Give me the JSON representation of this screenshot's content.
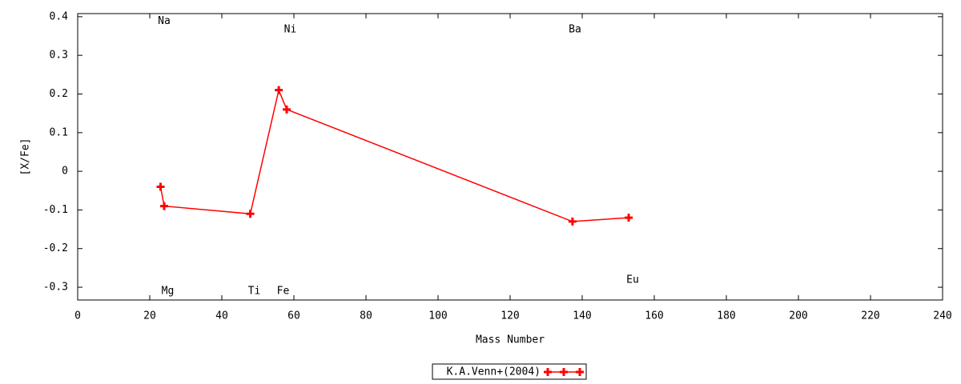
{
  "chart_data": {
    "type": "line",
    "xlabel": "Mass Number",
    "ylabel": "[X/Fe]",
    "xlim": [
      0,
      240
    ],
    "xticks": [
      0,
      20,
      40,
      60,
      80,
      100,
      120,
      140,
      160,
      180,
      200,
      220,
      240
    ],
    "ylim": [
      -0.333,
      0.408
    ],
    "yticks": [
      -0.3,
      -0.2,
      -0.1,
      0,
      0.1,
      0.2,
      0.3,
      0.4
    ],
    "grid": false,
    "legend": "bottom",
    "series": [
      {
        "name": "K.A.Venn+(2004)",
        "color": "#ff0000",
        "x": [
          23,
          24,
          47.9,
          55.8,
          58,
          137.3,
          152.9
        ],
        "values": [
          -0.04,
          -0.09,
          -0.11,
          0.21,
          0.16,
          -0.13,
          -0.12
        ]
      }
    ],
    "annotations": [
      {
        "text": "Na",
        "x": 24,
        "y": 0.388
      },
      {
        "text": "Ni",
        "x": 59,
        "y": 0.367
      },
      {
        "text": "Ba",
        "x": 138,
        "y": 0.367
      },
      {
        "text": "Mg",
        "x": 25,
        "y": -0.31
      },
      {
        "text": "Ti",
        "x": 49,
        "y": -0.31
      },
      {
        "text": "Fe",
        "x": 57,
        "y": -0.31
      },
      {
        "text": "Eu",
        "x": 154,
        "y": -0.281
      }
    ]
  }
}
